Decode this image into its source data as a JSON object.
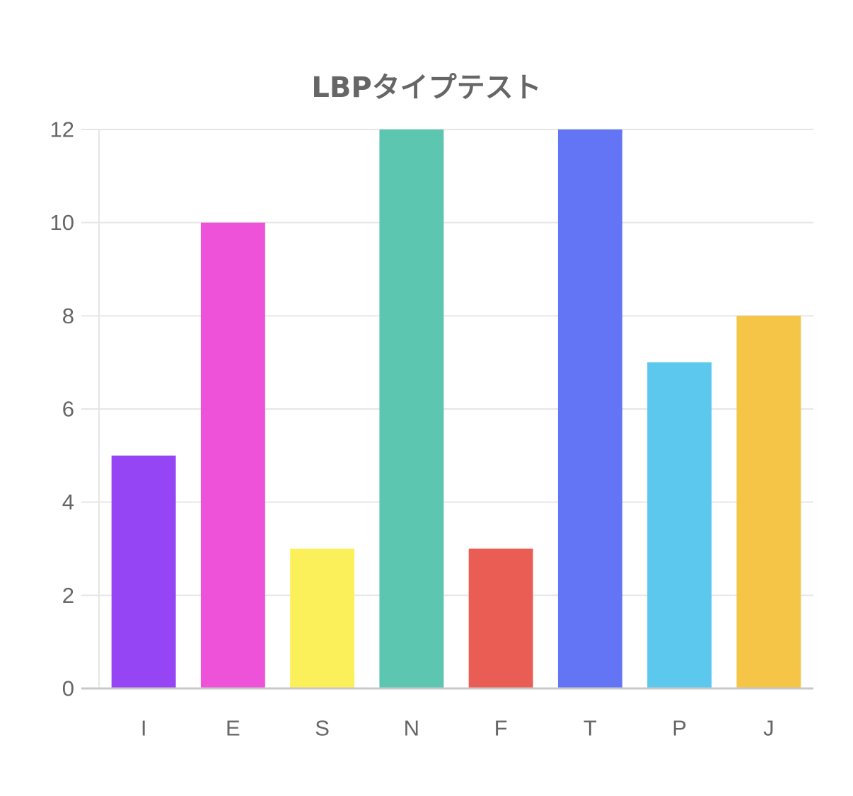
{
  "chart_data": {
    "type": "bar",
    "title": "LBPタイプテスト",
    "xlabel": "",
    "ylabel": "",
    "categories": [
      "I",
      "E",
      "S",
      "N",
      "F",
      "T",
      "P",
      "J"
    ],
    "values": [
      5,
      10,
      3,
      12,
      3,
      12,
      7,
      8
    ],
    "colors": [
      "#9645f5",
      "#ee52d9",
      "#fcf05a",
      "#5cc6b0",
      "#ea5d55",
      "#6374f5",
      "#5cc8ee",
      "#f5c547"
    ],
    "ylim": [
      0,
      12
    ],
    "yticks": [
      "0",
      "2",
      "4",
      "6",
      "8",
      "10",
      "12"
    ],
    "grid": true,
    "legend": "none",
    "gridColor": "#e6e6e6",
    "axisColor": "#c8c8c8"
  }
}
